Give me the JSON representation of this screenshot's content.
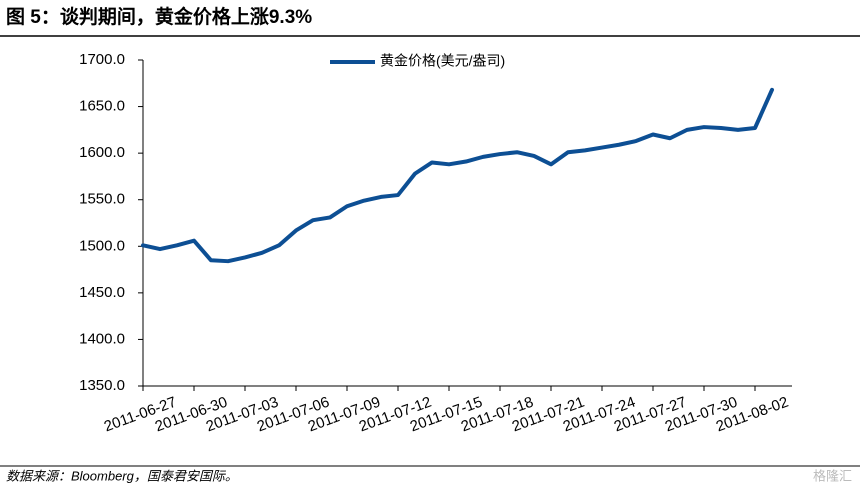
{
  "chart_data": {
    "type": "line",
    "title": "图 5：谈判期间，黄金价格上涨9.3%",
    "source": "数据来源：Bloomberg，国泰君安国际。",
    "watermark": "格隆汇",
    "categories": [
      "2011-06-27",
      null,
      null,
      "2011-06-30",
      null,
      null,
      "2011-07-03",
      null,
      null,
      "2011-07-06",
      null,
      null,
      "2011-07-09",
      null,
      null,
      "2011-07-12",
      null,
      null,
      "2011-07-15",
      null,
      null,
      "2011-07-18",
      null,
      null,
      "2011-07-21",
      null,
      null,
      "2011-07-24",
      null,
      null,
      "2011-07-27",
      null,
      null,
      "2011-07-30",
      null,
      null,
      "2011-08-02",
      null
    ],
    "series": [
      {
        "name": "黄金价格(美元/盎司)",
        "color": "#0d4f94",
        "values": [
          1501,
          1497,
          1501,
          1506,
          1485,
          1484,
          1488,
          1493,
          1501,
          1517,
          1528,
          1531,
          1543,
          1549,
          1553,
          1555,
          1578,
          1590,
          1588,
          1591,
          1596,
          1599,
          1601,
          1597,
          1588,
          1601,
          1603,
          1606,
          1609,
          1613,
          1620,
          1616,
          1625,
          1628,
          1627,
          1625,
          1627,
          1668
        ]
      }
    ],
    "ylim": [
      1350,
      1700
    ],
    "yticks": [
      {
        "value": 1350,
        "label": "1350.0"
      },
      {
        "value": 1400,
        "label": "1400.0"
      },
      {
        "value": 1450,
        "label": "1450.0"
      },
      {
        "value": 1500,
        "label": "1500.0"
      },
      {
        "value": 1550,
        "label": "1550.0"
      },
      {
        "value": 1600,
        "label": "1600.0"
      },
      {
        "value": 1650,
        "label": "1650.0"
      },
      {
        "value": 1700,
        "label": "1700.0"
      }
    ],
    "legend": "top"
  }
}
